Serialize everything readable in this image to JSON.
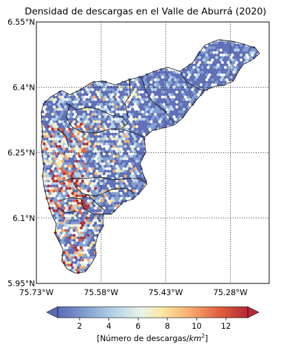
{
  "title": "Densidad de descargas en el Valle de Aburrá (2020)",
  "map": {
    "lon_range": [
      -75.73,
      -75.19
    ],
    "lat_range": [
      5.95,
      6.55
    ],
    "lat_ticks": [
      {
        "value": 6.55,
        "label": "6.55°N"
      },
      {
        "value": 6.4,
        "label": "6.4°N"
      },
      {
        "value": 6.25,
        "label": "6.25°N"
      },
      {
        "value": 6.1,
        "label": "6.1°N"
      },
      {
        "value": 5.95,
        "label": "5.95°N"
      }
    ],
    "lon_ticks": [
      {
        "value": -75.73,
        "label": "75.73°W"
      },
      {
        "value": -75.58,
        "label": "75.58°W"
      },
      {
        "value": -75.43,
        "label": "75.43°W"
      },
      {
        "value": -75.28,
        "label": "75.28°W"
      }
    ],
    "grid": "dotted",
    "plot_type": "hexbin"
  },
  "colorbar": {
    "min": 0.5,
    "max": 13.5,
    "ticks": [
      2,
      4,
      6,
      8,
      10,
      12
    ],
    "label_prefix": "[Número de descargas/",
    "label_unit": "km",
    "label_exp": "2",
    "label_suffix": "]",
    "extend": "both",
    "colormap": "RdYlBu_r",
    "colors": [
      "#5b6bb5",
      "#7f9ccf",
      "#b5d4e6",
      "#e9f3e6",
      "#fbe7a4",
      "#f6a96d",
      "#e0603f",
      "#b42a35"
    ]
  }
}
